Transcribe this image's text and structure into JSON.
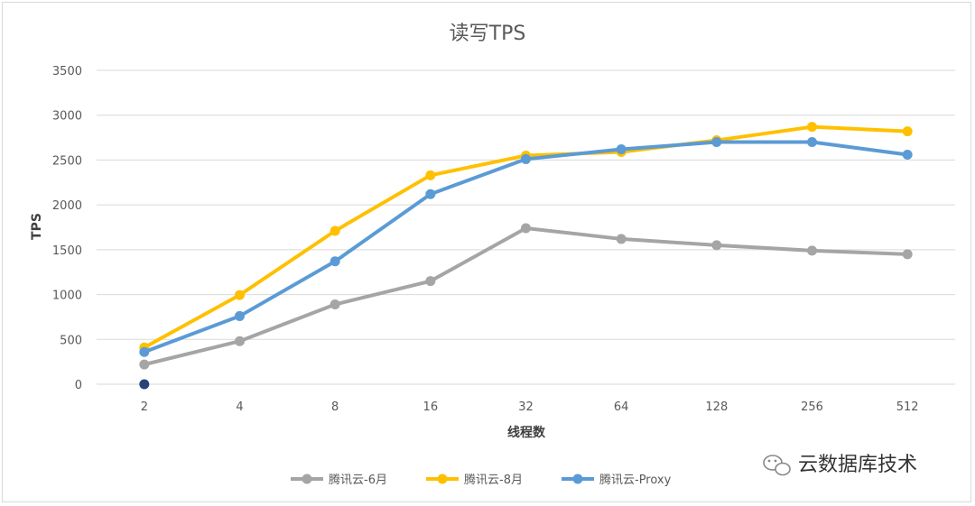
{
  "chart_data": {
    "type": "line",
    "title": "读写TPS",
    "xlabel": "线程数",
    "ylabel": "TPS",
    "categories": [
      "2",
      "4",
      "8",
      "16",
      "32",
      "64",
      "128",
      "256",
      "512"
    ],
    "ylim": [
      0,
      3500
    ],
    "yticks": [
      0,
      500,
      1000,
      1500,
      2000,
      2500,
      3000,
      3500
    ],
    "grid": true,
    "legend_position": "bottom",
    "series": [
      {
        "name": "腾讯云-6月",
        "color": "#a5a5a5",
        "values": [
          220,
          480,
          890,
          1150,
          1740,
          1620,
          1550,
          1490,
          1450
        ]
      },
      {
        "name": "腾讯云-8月",
        "color": "#ffc000",
        "values": [
          410,
          995,
          1710,
          2330,
          2550,
          2590,
          2720,
          2870,
          2820
        ]
      },
      {
        "name": "腾讯云-Proxy",
        "color": "#5b9bd5",
        "values": [
          360,
          760,
          1370,
          2120,
          2510,
          2620,
          2700,
          2700,
          2560
        ]
      }
    ],
    "extra_point": {
      "x": "2",
      "y": 0,
      "color": "#264478"
    }
  },
  "watermark": {
    "text": "云数据库技术",
    "icon": "wechat-icon"
  }
}
